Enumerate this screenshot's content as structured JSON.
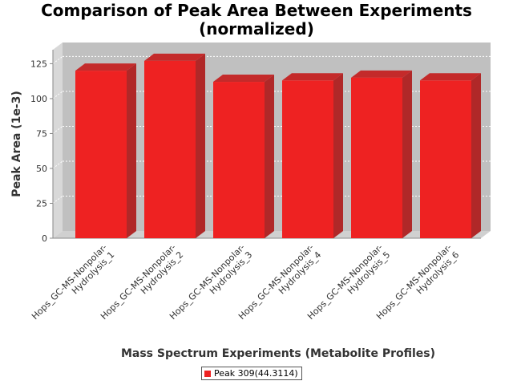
{
  "chart_data": {
    "type": "bar",
    "title": [
      "Comparison of Peak Area Between Experiments",
      "(normalized)"
    ],
    "xlabel": "Mass Spectrum Experiments (Metabolite Profiles)",
    "ylabel": "Peak Area (1e-3)",
    "ylim": [
      0,
      135
    ],
    "yticks": [
      0,
      25,
      50,
      75,
      100,
      125
    ],
    "categories": [
      "Hops_GC-MS-Nonpolar-Hydrolysis_1",
      "Hops_GC-MS-Nonpolar-Hydrolysis_2",
      "Hops_GC-MS-Nonpolar-Hydrolysis_3",
      "Hops_GC-MS-Nonpolar-Hydrolysis_4",
      "Hops_GC-MS-Nonpolar-Hydrolysis_5",
      "Hops_GC-MS-Nonpolar-Hydrolysis_6"
    ],
    "category_label_lines": [
      [
        "Hops_GC-MS-Nonpolar-",
        "Hydrolysis_1"
      ],
      [
        "Hops_GC-MS-Nonpolar-",
        "Hydrolysis_2"
      ],
      [
        "Hops_GC-MS-Nonpolar-",
        "Hydrolysis_3"
      ],
      [
        "Hops_GC-MS-Nonpolar-",
        "Hydrolysis_4"
      ],
      [
        "Hops_GC-MS-Nonpolar-",
        "Hydrolysis_5"
      ],
      [
        "Hops_GC-MS-Nonpolar-",
        "Hydrolysis_6"
      ]
    ],
    "series": [
      {
        "name": "Peak 309(44.3114)",
        "color": "#ee2222",
        "values": [
          120,
          127,
          112,
          113,
          115,
          113
        ]
      }
    ],
    "grid": true,
    "legend_position": "bottom",
    "style": "3d"
  }
}
